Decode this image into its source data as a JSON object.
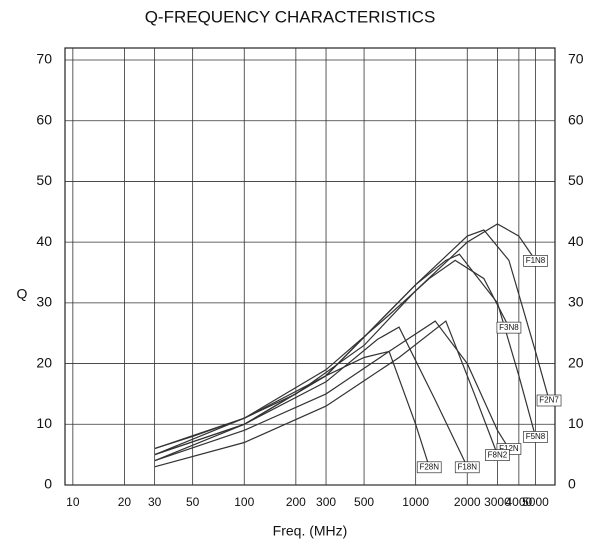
{
  "chart_data": {
    "type": "line",
    "title": "Q-FREQUENCY CHARACTERISTICS",
    "x_label": "Freq. (MHz)",
    "y_label": "Q",
    "log_x": true,
    "grid": true,
    "xlim": [
      9,
      6500
    ],
    "xticks": [
      10,
      20,
      30,
      50,
      100,
      200,
      300,
      500,
      1000,
      2000,
      3000,
      4000,
      5000
    ],
    "ylim": [
      0,
      70
    ],
    "yticks": [
      0,
      10,
      20,
      30,
      40,
      50,
      60,
      70
    ],
    "y2lim": [
      0,
      70
    ],
    "y2ticks": [
      0,
      10,
      20,
      30,
      40,
      50,
      60,
      70
    ],
    "series": [
      {
        "name": "F1N8",
        "color": "#333333",
        "x": [
          30,
          50,
          100,
          200,
          500,
          1000,
          2000,
          3000,
          4000,
          5000
        ],
        "values": [
          6,
          8,
          11,
          15,
          23,
          32,
          40,
          43,
          41,
          37
        ]
      },
      {
        "name": "F2N7",
        "color": "#333333",
        "x": [
          30,
          100,
          300,
          1000,
          2000,
          2500,
          3500,
          5000,
          6000
        ],
        "values": [
          5,
          10,
          18,
          33,
          41,
          42,
          37,
          22,
          14
        ]
      },
      {
        "name": "F5N8",
        "color": "#333333",
        "x": [
          30,
          100,
          300,
          1000,
          1500,
          1800,
          3000,
          4000,
          5000
        ],
        "values": [
          5,
          10,
          18,
          33,
          37,
          38,
          30,
          18,
          8
        ]
      },
      {
        "name": "F3N8",
        "color": "#333333",
        "x": [
          30,
          100,
          300,
          700,
          1200,
          1700,
          2500,
          3500
        ],
        "values": [
          6,
          11,
          19,
          28,
          34,
          37,
          34,
          26
        ]
      },
      {
        "name": "F12N",
        "color": "#333333",
        "x": [
          30,
          100,
          300,
          700,
          1300,
          2000,
          3000,
          3500
        ],
        "values": [
          4,
          9,
          15,
          22,
          27,
          20,
          9,
          6
        ]
      },
      {
        "name": "F8N2",
        "color": "#333333",
        "x": [
          30,
          100,
          300,
          800,
          1500,
          2200,
          3000
        ],
        "values": [
          3,
          7,
          13,
          21,
          27,
          15,
          5
        ]
      },
      {
        "name": "F18N",
        "color": "#333333",
        "x": [
          30,
          100,
          300,
          600,
          800,
          1300,
          2000
        ],
        "values": [
          4,
          10,
          17,
          24,
          26,
          14,
          3
        ]
      },
      {
        "name": "F28N",
        "color": "#333333",
        "x": [
          30,
          100,
          300,
          500,
          700,
          1000,
          1200
        ],
        "values": [
          5,
          11,
          18,
          21,
          22,
          10,
          3
        ]
      }
    ]
  }
}
